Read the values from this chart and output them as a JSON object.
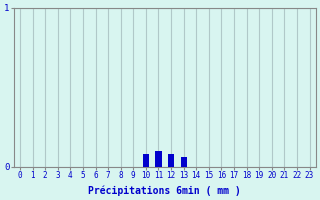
{
  "hours": [
    0,
    1,
    2,
    3,
    4,
    5,
    6,
    7,
    8,
    9,
    10,
    11,
    12,
    13,
    14,
    15,
    16,
    17,
    18,
    19,
    20,
    21,
    22,
    23
  ],
  "values": [
    0,
    0,
    0,
    0,
    0,
    0,
    0,
    0,
    0,
    0,
    0.08,
    0.1,
    0.08,
    0.06,
    0,
    0,
    0,
    0,
    0,
    0,
    0,
    0,
    0,
    0
  ],
  "bar_color": "#0000cc",
  "bg_color": "#d8f5f0",
  "grid_color": "#b0c8c8",
  "axis_color": "#888888",
  "text_color": "#0000cc",
  "xlabel": "Précipitations 6min ( mm )",
  "ylim": [
    0,
    1
  ],
  "xlim": [
    -0.5,
    23.5
  ],
  "yticks": [
    0,
    1
  ],
  "xticks": [
    0,
    1,
    2,
    3,
    4,
    5,
    6,
    7,
    8,
    9,
    10,
    11,
    12,
    13,
    14,
    15,
    16,
    17,
    18,
    19,
    20,
    21,
    22,
    23
  ],
  "bar_width": 0.5
}
